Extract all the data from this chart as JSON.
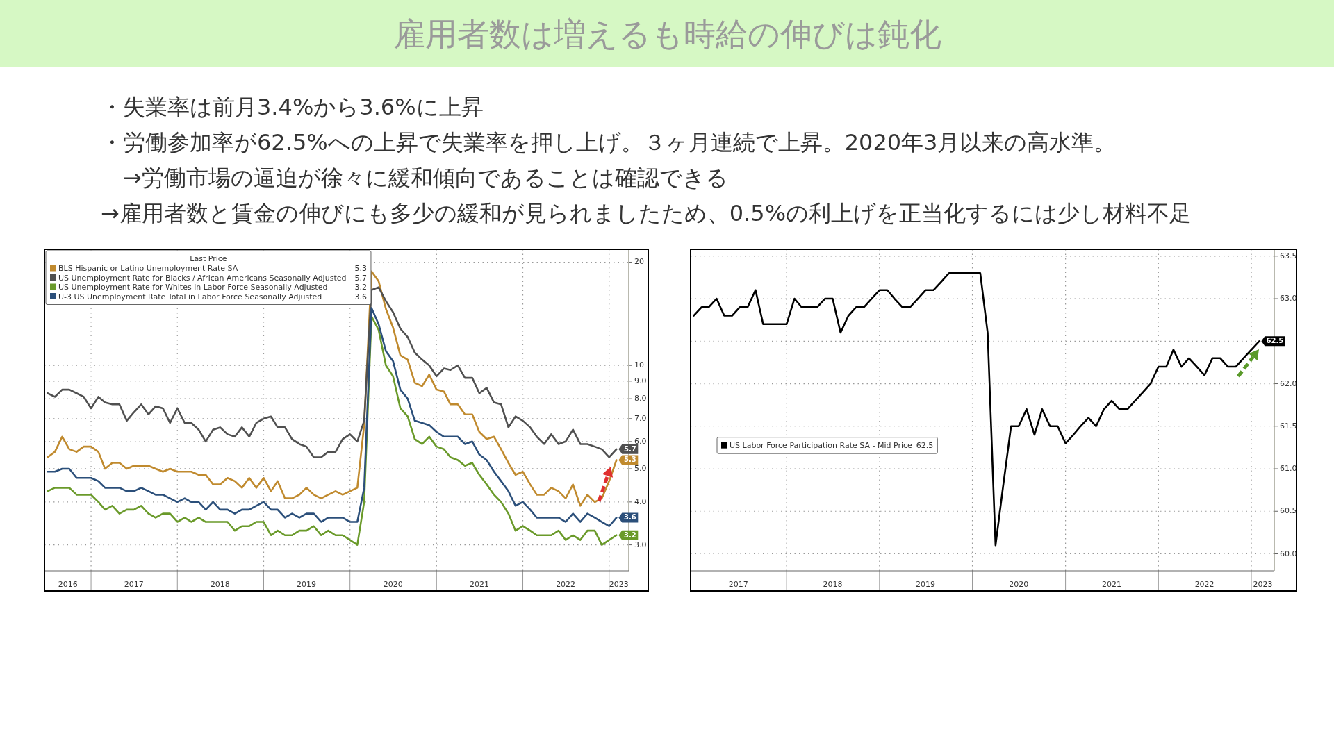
{
  "chart_data": [
    {
      "type": "line",
      "title": "雇用者数は増えるも時給の伸びは鈍化",
      "annotations": [
        "・失業率は前月3.4%から3.6%に上昇",
        "・労働参加率が62.5%への上昇で失業率を押し上げ。３ヶ月連続で上昇。2020年3月以来の高水準。",
        "　→労働市場の逼迫が徐々に緩和傾向であることは確認できる",
        "→雇用者数と賃金の伸びにも多少の緩和が見られましたため、0.5%の利上げを正当化するには少し材料不足"
      ],
      "log": true,
      "grid": true,
      "legend": "top left",
      "legend_title": "Last Price",
      "xlim": [
        "2016-06-18",
        "2023-03-25"
      ],
      "ylim": [
        2.52,
        21.8
      ],
      "xticks": [
        {
          "value": "2016-09-25",
          "label": "2016"
        },
        {
          "value": "2017-01-01",
          "label": null
        },
        {
          "value": "2017-07-01",
          "label": "2017"
        },
        {
          "value": "2018-01-01",
          "label": null
        },
        {
          "value": "2018-07-01",
          "label": "2018"
        },
        {
          "value": "2019-01-01",
          "label": null
        },
        {
          "value": "2019-07-01",
          "label": "2019"
        },
        {
          "value": "2020-01-01",
          "label": null
        },
        {
          "value": "2020-07-01",
          "label": "2020"
        },
        {
          "value": "2021-01-01",
          "label": null
        },
        {
          "value": "2021-07-01",
          "label": "2021"
        },
        {
          "value": "2022-01-01",
          "label": null
        },
        {
          "value": "2022-07-01",
          "label": "2022"
        },
        {
          "value": "2023-01-01",
          "label": null
        },
        {
          "value": "2023-02-11",
          "label": "2023"
        }
      ],
      "yticks": [
        {
          "value": 3,
          "label": "3.0"
        },
        {
          "value": 4,
          "label": "4.0"
        },
        {
          "value": 5,
          "label": "5.0"
        },
        {
          "value": 6,
          "label": "6.0"
        },
        {
          "value": 7,
          "label": "7.0"
        },
        {
          "value": 8,
          "label": "8.0"
        },
        {
          "value": 9,
          "label": "9.0"
        },
        10,
        20
      ],
      "x": [
        "2016-07",
        "2016-08",
        "2016-09",
        "2016-10",
        "2016-11",
        "2016-12",
        "2017-01",
        "2017-02",
        "2017-03",
        "2017-04",
        "2017-05",
        "2017-06",
        "2017-07",
        "2017-08",
        "2017-09",
        "2017-10",
        "2017-11",
        "2017-12",
        "2018-01",
        "2018-02",
        "2018-03",
        "2018-04",
        "2018-05",
        "2018-06",
        "2018-07",
        "2018-08",
        "2018-09",
        "2018-10",
        "2018-11",
        "2018-12",
        "2019-01",
        "2019-02",
        "2019-03",
        "2019-04",
        "2019-05",
        "2019-06",
        "2019-07",
        "2019-08",
        "2019-09",
        "2019-10",
        "2019-11",
        "2019-12",
        "2020-01",
        "2020-02",
        "2020-03",
        "2020-04",
        "2020-05",
        "2020-06",
        "2020-07",
        "2020-08",
        "2020-09",
        "2020-10",
        "2020-11",
        "2020-12",
        "2021-01",
        "2021-02",
        "2021-03",
        "2021-04",
        "2021-05",
        "2021-06",
        "2021-07",
        "2021-08",
        "2021-09",
        "2021-10",
        "2021-11",
        "2021-12",
        "2022-01",
        "2022-02",
        "2022-03",
        "2022-04",
        "2022-05",
        "2022-06",
        "2022-07",
        "2022-08",
        "2022-09",
        "2022-10",
        "2022-11",
        "2022-12",
        "2023-01",
        "2023-02"
      ],
      "series": [
        {
          "name": "BLS Hispanic or Latino Unemployment Rate SA",
          "color": "#c08a2e",
          "values": [
            5.4,
            5.6,
            6.2,
            5.7,
            5.6,
            5.8,
            5.8,
            5.6,
            5.0,
            5.2,
            5.2,
            5.0,
            5.1,
            5.1,
            5.1,
            5.0,
            4.9,
            5.0,
            4.9,
            4.9,
            4.9,
            4.8,
            4.8,
            4.5,
            4.5,
            4.7,
            4.6,
            4.4,
            4.7,
            4.4,
            4.7,
            4.3,
            4.6,
            4.1,
            4.1,
            4.2,
            4.4,
            4.2,
            4.1,
            4.2,
            4.3,
            4.2,
            4.3,
            4.4,
            6.7,
            18.8,
            17.6,
            14.6,
            12.9,
            10.7,
            10.4,
            8.9,
            8.7,
            9.4,
            8.5,
            8.4,
            7.7,
            7.7,
            7.2,
            7.2,
            6.4,
            6.1,
            6.2,
            5.7,
            5.2,
            4.8,
            4.9,
            4.5,
            4.2,
            4.2,
            4.4,
            4.3,
            4.1,
            4.5,
            3.9,
            4.2,
            4.0,
            4.1,
            4.6,
            5.3
          ],
          "value_labels": [
            null,
            null,
            null,
            null,
            null,
            null,
            null,
            null,
            null,
            null,
            null,
            null,
            null,
            null,
            null,
            null,
            null,
            null,
            null,
            null,
            null,
            null,
            null,
            null,
            null,
            null,
            null,
            null,
            null,
            null,
            null,
            null,
            null,
            null,
            null,
            null,
            null,
            null,
            null,
            null,
            null,
            null,
            null,
            null,
            null,
            null,
            null,
            null,
            null,
            null,
            null,
            null,
            null,
            null,
            null,
            null,
            null,
            null,
            null,
            null,
            null,
            null,
            null,
            null,
            null,
            null,
            null,
            null,
            null,
            null,
            null,
            null,
            null,
            null,
            null,
            null,
            null,
            null,
            null,
            "5.3"
          ]
        },
        {
          "name": "US Unemployment Rate for Blacks / African Americans Seasonally Adjusted",
          "color": "#505050",
          "values": [
            8.3,
            8.1,
            8.5,
            8.5,
            8.3,
            8.1,
            7.5,
            8.1,
            7.8,
            7.7,
            7.7,
            6.9,
            7.3,
            7.7,
            7.2,
            7.6,
            7.5,
            6.8,
            7.5,
            6.8,
            6.8,
            6.5,
            6.0,
            6.5,
            6.6,
            6.3,
            6.2,
            6.6,
            6.2,
            6.8,
            7.0,
            7.1,
            6.6,
            6.6,
            6.1,
            5.9,
            5.8,
            5.4,
            5.4,
            5.6,
            5.6,
            6.1,
            6.3,
            6.0,
            6.9,
            16.6,
            16.9,
            15.4,
            14.3,
            12.8,
            12.1,
            10.9,
            10.4,
            10.0,
            9.3,
            9.8,
            9.7,
            10.0,
            9.2,
            9.2,
            8.3,
            8.6,
            7.8,
            7.7,
            6.6,
            7.1,
            6.9,
            6.6,
            6.2,
            5.9,
            6.3,
            5.9,
            6.0,
            6.5,
            5.9,
            5.9,
            5.8,
            5.7,
            5.4,
            5.7
          ],
          "value_labels": [
            null,
            null,
            null,
            null,
            null,
            null,
            null,
            null,
            null,
            null,
            null,
            null,
            null,
            null,
            null,
            null,
            null,
            null,
            null,
            null,
            null,
            null,
            null,
            null,
            null,
            null,
            null,
            null,
            null,
            null,
            null,
            null,
            null,
            null,
            null,
            null,
            null,
            null,
            null,
            null,
            null,
            null,
            null,
            null,
            null,
            null,
            null,
            null,
            null,
            null,
            null,
            null,
            null,
            null,
            null,
            null,
            null,
            null,
            null,
            null,
            null,
            null,
            null,
            null,
            null,
            null,
            null,
            null,
            null,
            null,
            null,
            null,
            null,
            null,
            null,
            null,
            null,
            null,
            null,
            "5.7"
          ]
        },
        {
          "name": "US Unemployment Rate for Whites in Labor Force Seasonally Adjusted",
          "color": "#6a9a2a",
          "values": [
            4.3,
            4.4,
            4.4,
            4.4,
            4.2,
            4.2,
            4.2,
            4.0,
            3.8,
            3.9,
            3.7,
            3.8,
            3.8,
            3.9,
            3.7,
            3.6,
            3.7,
            3.7,
            3.5,
            3.6,
            3.5,
            3.6,
            3.5,
            3.5,
            3.5,
            3.5,
            3.3,
            3.4,
            3.4,
            3.5,
            3.5,
            3.2,
            3.3,
            3.2,
            3.2,
            3.3,
            3.3,
            3.4,
            3.2,
            3.3,
            3.2,
            3.2,
            3.1,
            3.0,
            4.0,
            13.9,
            12.7,
            10.0,
            9.3,
            7.5,
            7.1,
            6.1,
            5.9,
            6.2,
            5.8,
            5.7,
            5.4,
            5.3,
            5.1,
            5.2,
            4.8,
            4.5,
            4.2,
            4.0,
            3.7,
            3.3,
            3.4,
            3.3,
            3.2,
            3.2,
            3.2,
            3.3,
            3.1,
            3.2,
            3.1,
            3.3,
            3.3,
            3.0,
            3.1,
            3.2
          ],
          "value_labels": [
            null,
            null,
            null,
            null,
            null,
            null,
            null,
            null,
            null,
            null,
            null,
            null,
            null,
            null,
            null,
            null,
            null,
            null,
            null,
            null,
            null,
            null,
            null,
            null,
            null,
            null,
            null,
            null,
            null,
            null,
            null,
            null,
            null,
            null,
            null,
            null,
            null,
            null,
            null,
            null,
            null,
            null,
            null,
            null,
            null,
            null,
            null,
            null,
            null,
            null,
            null,
            null,
            null,
            null,
            null,
            null,
            null,
            null,
            null,
            null,
            null,
            null,
            null,
            null,
            null,
            null,
            null,
            null,
            null,
            null,
            null,
            null,
            null,
            null,
            null,
            null,
            null,
            null,
            null,
            "3.2"
          ]
        },
        {
          "name": "U-3 US Unemployment Rate Total in Labor Force Seasonally Adjusted",
          "color": "#2b4f7a",
          "values": [
            4.9,
            4.9,
            5.0,
            5.0,
            4.7,
            4.7,
            4.7,
            4.6,
            4.4,
            4.4,
            4.4,
            4.3,
            4.3,
            4.4,
            4.3,
            4.2,
            4.2,
            4.1,
            4.0,
            4.1,
            4.0,
            4.0,
            3.8,
            4.0,
            3.8,
            3.8,
            3.7,
            3.8,
            3.8,
            3.9,
            4.0,
            3.8,
            3.8,
            3.6,
            3.7,
            3.6,
            3.7,
            3.7,
            3.5,
            3.6,
            3.6,
            3.6,
            3.5,
            3.5,
            4.4,
            14.7,
            13.2,
            11.0,
            10.3,
            8.5,
            8.0,
            6.9,
            6.8,
            6.7,
            6.4,
            6.2,
            6.2,
            6.2,
            5.9,
            6.0,
            5.5,
            5.3,
            4.9,
            4.6,
            4.3,
            3.9,
            4.0,
            3.8,
            3.6,
            3.6,
            3.6,
            3.6,
            3.5,
            3.7,
            3.5,
            3.7,
            3.6,
            3.5,
            3.4,
            3.6
          ],
          "value_labels": [
            null,
            null,
            null,
            null,
            null,
            null,
            null,
            null,
            null,
            null,
            null,
            null,
            null,
            null,
            null,
            null,
            null,
            null,
            null,
            null,
            null,
            null,
            null,
            null,
            null,
            null,
            null,
            null,
            null,
            null,
            null,
            null,
            null,
            null,
            null,
            null,
            null,
            null,
            null,
            null,
            null,
            null,
            null,
            null,
            null,
            null,
            null,
            null,
            null,
            null,
            null,
            null,
            null,
            null,
            null,
            null,
            null,
            null,
            null,
            null,
            null,
            null,
            null,
            null,
            null,
            null,
            null,
            null,
            null,
            null,
            null,
            null,
            null,
            null,
            null,
            null,
            null,
            null,
            null,
            "3.6"
          ]
        }
      ]
    },
    {
      "type": "line",
      "grid": true,
      "legend": "left",
      "xlim": [
        "2016-12-20",
        "2023-04-01"
      ],
      "ylim": [
        59.8,
        63.58
      ],
      "xticks": [
        {
          "value": "2017-06-26",
          "label": "2017"
        },
        {
          "value": "2018-01-01",
          "label": null
        },
        {
          "value": "2018-07-01",
          "label": "2018"
        },
        {
          "value": "2019-01-01",
          "label": null
        },
        {
          "value": "2019-07-01",
          "label": "2019"
        },
        {
          "value": "2020-01-01",
          "label": null
        },
        {
          "value": "2020-07-01",
          "label": "2020"
        },
        {
          "value": "2021-01-01",
          "label": null
        },
        {
          "value": "2021-07-01",
          "label": "2021"
        },
        {
          "value": "2022-01-01",
          "label": null
        },
        {
          "value": "2022-07-01",
          "label": "2022"
        },
        {
          "value": "2023-01-01",
          "label": null
        },
        {
          "value": "2023-02-15",
          "label": "2023"
        }
      ],
      "yticks": [
        {
          "value": 60,
          "label": "60.0"
        },
        60.5,
        {
          "value": 61,
          "label": "61.0"
        },
        61.5,
        {
          "value": 62,
          "label": "62.0"
        },
        {
          "value": 62.5,
          "label": null
        },
        {
          "value": 63,
          "label": "63.0"
        },
        63.5
      ],
      "x": [
        "2017-01",
        "2017-02",
        "2017-03",
        "2017-04",
        "2017-05",
        "2017-06",
        "2017-07",
        "2017-08",
        "2017-09",
        "2017-10",
        "2017-11",
        "2017-12",
        "2018-01",
        "2018-02",
        "2018-03",
        "2018-04",
        "2018-05",
        "2018-06",
        "2018-07",
        "2018-08",
        "2018-09",
        "2018-10",
        "2018-11",
        "2018-12",
        "2019-01",
        "2019-02",
        "2019-03",
        "2019-04",
        "2019-05",
        "2019-06",
        "2019-07",
        "2019-08",
        "2019-09",
        "2019-10",
        "2019-11",
        "2019-12",
        "2020-01",
        "2020-02",
        "2020-03",
        "2020-04",
        "2020-05",
        "2020-06",
        "2020-07",
        "2020-08",
        "2020-09",
        "2020-10",
        "2020-11",
        "2020-12",
        "2021-01",
        "2021-02",
        "2021-03",
        "2021-04",
        "2021-05",
        "2021-06",
        "2021-07",
        "2021-08",
        "2021-09",
        "2021-10",
        "2021-11",
        "2021-12",
        "2022-01",
        "2022-02",
        "2022-03",
        "2022-04",
        "2022-05",
        "2022-06",
        "2022-07",
        "2022-08",
        "2022-09",
        "2022-10",
        "2022-11",
        "2022-12",
        "2023-01",
        "2023-02"
      ],
      "series": [
        {
          "name": "US Labor Force Participation Rate SA - Mid Price",
          "color": "#000000",
          "values": [
            62.8,
            62.9,
            62.9,
            63.0,
            62.8,
            62.8,
            62.9,
            62.9,
            63.1,
            62.7,
            62.7,
            62.7,
            62.7,
            63.0,
            62.9,
            62.9,
            62.9,
            63.0,
            63.0,
            62.6,
            62.8,
            62.9,
            62.9,
            63.0,
            63.1,
            63.1,
            63.0,
            62.9,
            62.9,
            63.0,
            63.1,
            63.1,
            63.2,
            63.3,
            63.3,
            63.3,
            63.3,
            63.3,
            62.6,
            60.1,
            60.8,
            61.5,
            61.5,
            61.7,
            61.4,
            61.7,
            61.5,
            61.5,
            61.3,
            61.4,
            61.5,
            61.6,
            61.5,
            61.7,
            61.8,
            61.7,
            61.7,
            61.8,
            61.9,
            62.0,
            62.2,
            62.2,
            62.4,
            62.2,
            62.3,
            62.2,
            62.1,
            62.3,
            62.3,
            62.2,
            62.2,
            62.3,
            62.4,
            62.5
          ],
          "value_labels": [
            null,
            null,
            null,
            null,
            null,
            null,
            null,
            null,
            null,
            null,
            null,
            null,
            null,
            null,
            null,
            null,
            null,
            null,
            null,
            null,
            null,
            null,
            null,
            null,
            null,
            null,
            null,
            null,
            null,
            null,
            null,
            null,
            null,
            null,
            null,
            null,
            null,
            null,
            null,
            null,
            null,
            null,
            null,
            null,
            null,
            null,
            null,
            null,
            null,
            null,
            null,
            null,
            null,
            null,
            null,
            null,
            null,
            null,
            null,
            null,
            null,
            null,
            null,
            null,
            null,
            null,
            null,
            null,
            null,
            null,
            null,
            null,
            null,
            "62.5"
          ]
        }
      ]
    }
  ]
}
